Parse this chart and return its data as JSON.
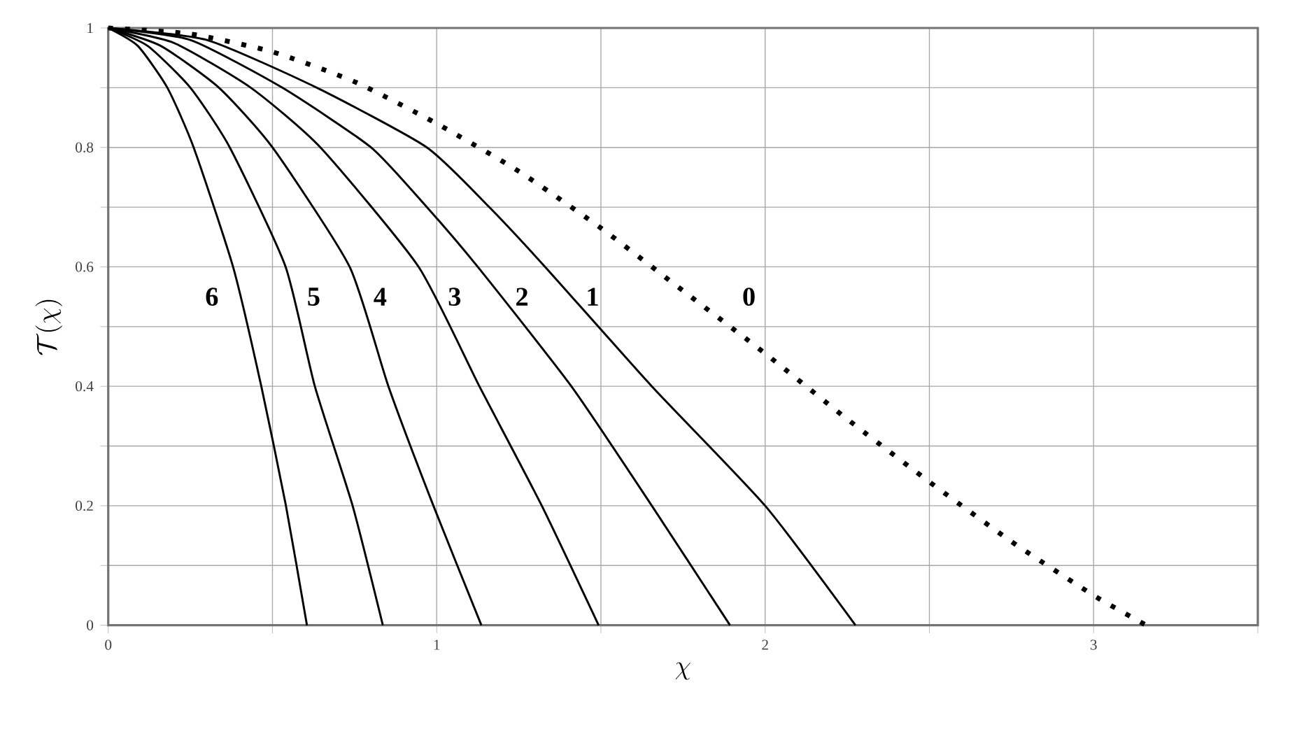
{
  "chart_data": {
    "type": "line",
    "xlabel": "\\chi",
    "ylabel": "\\mathcal{T}(\\chi)",
    "xlim": [
      0,
      3.5
    ],
    "ylim": [
      0,
      1
    ],
    "xticks": [
      0,
      {
        "value": 0.5,
        "label": null
      },
      1,
      {
        "value": 1.5,
        "label": null
      },
      2,
      {
        "value": 2.5,
        "label": null
      },
      3,
      {
        "value": 3.5,
        "label": null
      }
    ],
    "yticks": [
      0,
      {
        "value": 0.1,
        "label": null
      },
      0.2,
      {
        "value": 0.3,
        "label": null
      },
      0.4,
      {
        "value": 0.5,
        "label": null
      },
      0.6,
      {
        "value": 0.7,
        "label": null
      },
      0.8,
      {
        "value": 0.9,
        "label": null
      },
      1
    ],
    "grid": true,
    "marker": "none",
    "series": [
      {
        "name": "0",
        "color": "#000000",
        "line_style": "dotted",
        "x": [
          0,
          0.25,
          0.5,
          0.75,
          1,
          1.25,
          1.5,
          1.75,
          2,
          2.25,
          2.5,
          2.75,
          3,
          3.16
        ],
        "values": [
          1,
          0.99,
          0.96,
          0.91,
          0.84,
          0.76,
          0.665,
          0.56,
          0.455,
          0.345,
          0.24,
          0.14,
          0.05,
          0
        ]
      },
      {
        "name": "1",
        "color": "#000000",
        "line_style": "solid",
        "x": [
          0,
          0.3,
          0.635,
          0.97,
          1.16,
          1.33,
          1.655,
          2.0,
          2.275
        ],
        "values": [
          1,
          0.98,
          0.9,
          0.8,
          0.7,
          0.6,
          0.4,
          0.2,
          0
        ]
      },
      {
        "name": "2",
        "color": "#000000",
        "line_style": "solid",
        "x": [
          0,
          0.25,
          0.53,
          0.8,
          0.97,
          1.125,
          1.41,
          1.655,
          1.893
        ],
        "values": [
          1,
          0.98,
          0.9,
          0.8,
          0.7,
          0.6,
          0.4,
          0.2,
          0
        ]
      },
      {
        "name": "3",
        "color": "#000000",
        "line_style": "solid",
        "x": [
          0,
          0.2,
          0.434,
          0.646,
          0.945,
          1.13,
          1.32,
          1.493
        ],
        "values": [
          1,
          0.975,
          0.9,
          0.8,
          0.6,
          0.4,
          0.2,
          0
        ]
      },
      {
        "name": "4",
        "color": "#000000",
        "line_style": "solid",
        "x": [
          0,
          0.16,
          0.337,
          0.5,
          0.735,
          0.853,
          0.99,
          1.136
        ],
        "values": [
          1,
          0.97,
          0.9,
          0.8,
          0.6,
          0.4,
          0.2,
          0
        ]
      },
      {
        "name": "5",
        "color": "#000000",
        "line_style": "solid",
        "x": [
          0,
          0.12,
          0.25,
          0.37,
          0.54,
          0.629,
          0.744,
          0.836
        ],
        "values": [
          1,
          0.97,
          0.9,
          0.8,
          0.6,
          0.4,
          0.2,
          0
        ]
      },
      {
        "name": "6",
        "color": "#000000",
        "line_style": "solid",
        "x": [
          0,
          0.09,
          0.18,
          0.26,
          0.38,
          0.466,
          0.541,
          0.605
        ],
        "values": [
          1,
          0.97,
          0.9,
          0.8,
          0.6,
          0.4,
          0.2,
          0
        ]
      }
    ]
  }
}
